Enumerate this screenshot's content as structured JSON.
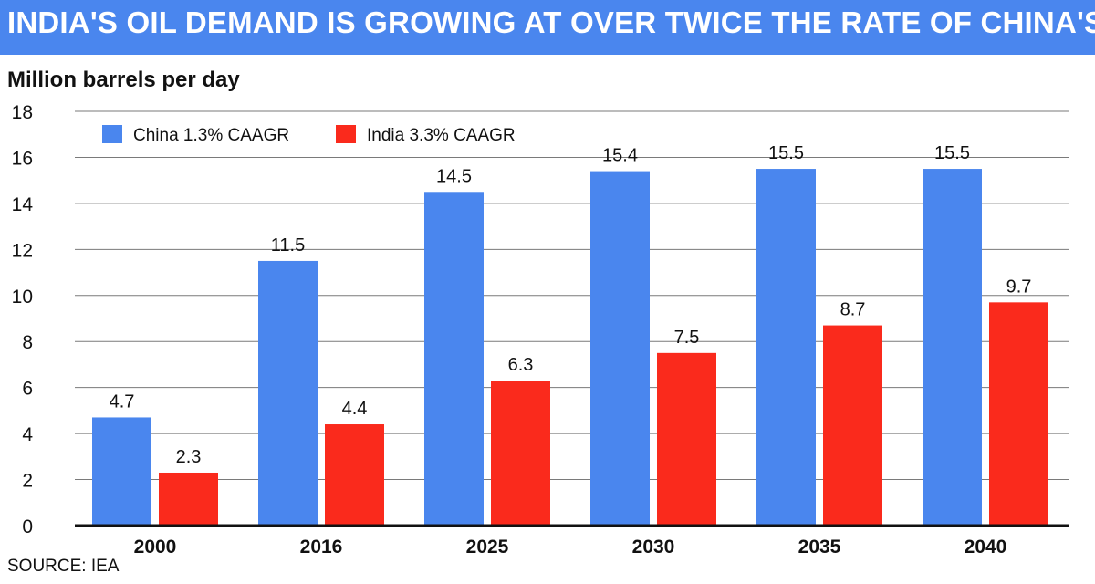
{
  "header": {
    "title": "INDIA'S OIL DEMAND IS GROWING AT OVER TWICE THE RATE OF CHINA'S"
  },
  "footer": {
    "source": "SOURCE: IEA"
  },
  "colors": {
    "china": "#4a86ee",
    "india": "#fa2a1c",
    "header_bg": "#4a86ee",
    "grid": "#7a7a7a",
    "axis": "#111111"
  },
  "chart_data": {
    "type": "bar",
    "title": "INDIA'S OIL DEMAND IS GROWING AT OVER TWICE THE RATE OF CHINA'S",
    "ylabel": "Million barrels per day",
    "xlabel": "",
    "categories": [
      "2000",
      "2016",
      "2025",
      "2030",
      "2035",
      "2040"
    ],
    "series": [
      {
        "name": "China 1.3% CAAGR",
        "values": [
          4.7,
          11.5,
          14.5,
          15.4,
          15.5,
          15.5
        ],
        "data_labels": [
          "4.7",
          "11.5",
          "14.5",
          "15.4",
          "15.5",
          "15.5"
        ]
      },
      {
        "name": "India 3.3% CAAGR",
        "values": [
          2.3,
          4.4,
          6.3,
          7.5,
          8.7,
          9.7
        ],
        "data_labels": [
          "2.3",
          "4.4",
          "6.3",
          "7.5",
          "8.7",
          "9.7"
        ]
      }
    ],
    "ylim": [
      0,
      18
    ],
    "yticks": [
      "0",
      "2",
      "4",
      "6",
      "8",
      "10",
      "12",
      "14",
      "16",
      "18"
    ],
    "grid": true,
    "legend_position": "top-left"
  }
}
